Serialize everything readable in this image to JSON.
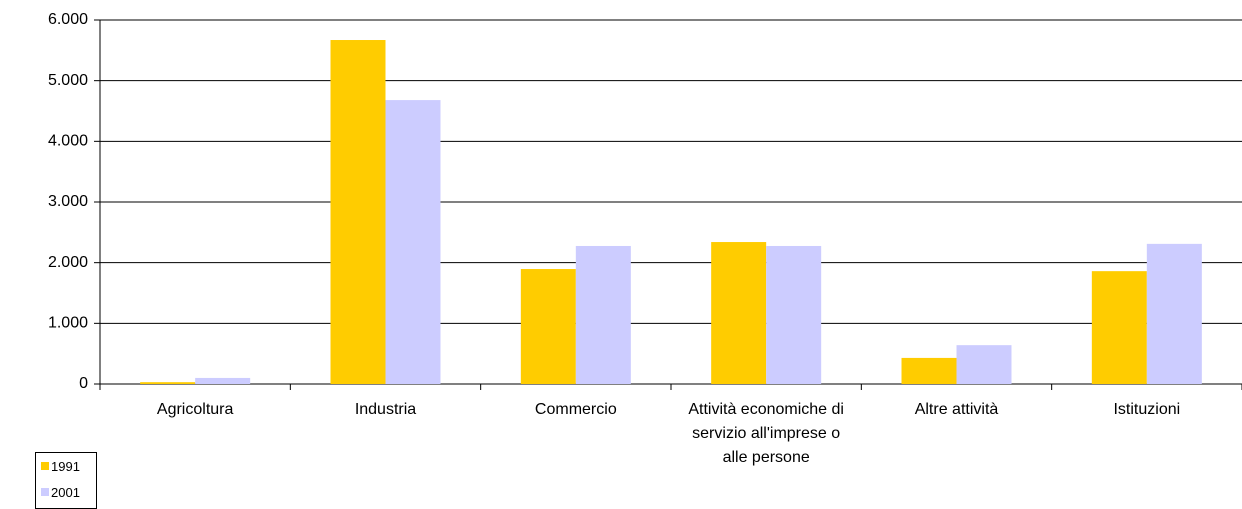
{
  "chart_data": {
    "type": "bar",
    "categories": [
      "Agricoltura",
      "Industria",
      "Commercio",
      "Attività economiche di servizio all'imprese o alle persone",
      "Altre attività",
      "Istituzioni"
    ],
    "series": [
      {
        "name": "1991",
        "color": "#ffcc00",
        "values": [
          30,
          5670,
          1895,
          2340,
          430,
          1860
        ]
      },
      {
        "name": "2001",
        "color": "#ccccff",
        "values": [
          100,
          4680,
          2275,
          2275,
          640,
          2310
        ]
      }
    ],
    "ylim": [
      0,
      6000
    ],
    "yticks": [
      0,
      {
        "value": 1000,
        "label": "1.000"
      },
      {
        "value": 2000,
        "label": "2.000"
      },
      {
        "value": 3000,
        "label": "3.000"
      },
      {
        "value": 4000,
        "label": "4.000"
      },
      {
        "value": 5000,
        "label": "5.000"
      },
      {
        "value": 6000,
        "label": "6.000"
      }
    ],
    "grid": true
  }
}
